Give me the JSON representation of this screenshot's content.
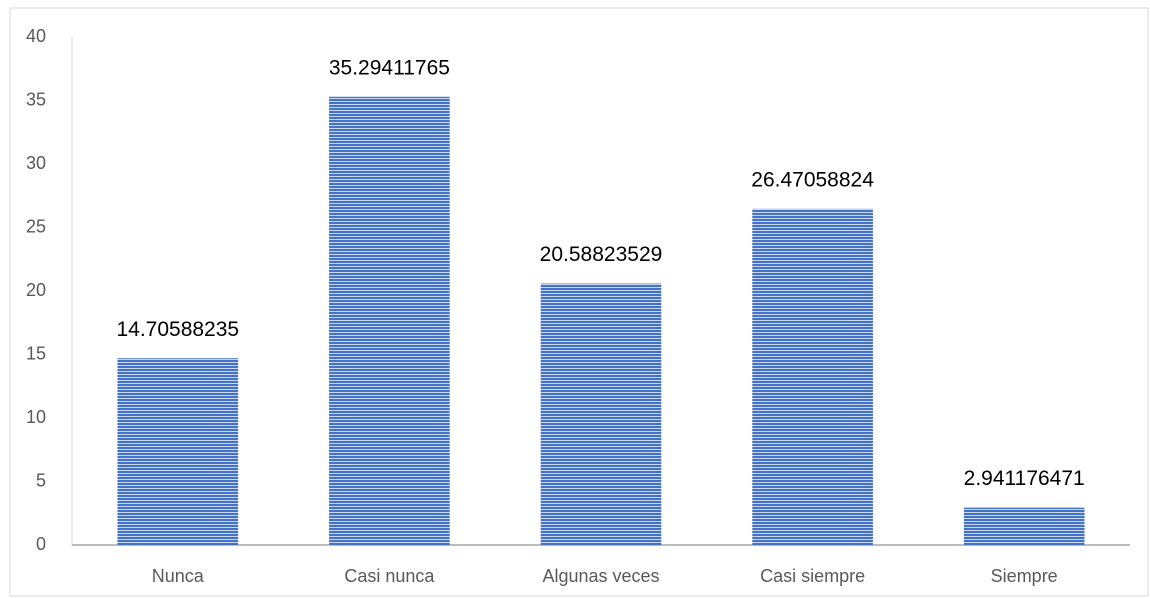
{
  "chart_data": {
    "type": "bar",
    "categories": [
      "Nunca",
      "Casi nunca",
      "Algunas veces",
      "Casi siempre",
      "Siempre"
    ],
    "values": [
      14.70588235,
      35.29411765,
      20.58823529,
      26.47058824,
      2.941176471
    ],
    "color": "#4472c4",
    "ylim": [
      0,
      40
    ],
    "yticks": [
      0,
      5,
      10,
      15,
      20,
      25,
      30,
      35,
      40
    ],
    "grid": false
  }
}
